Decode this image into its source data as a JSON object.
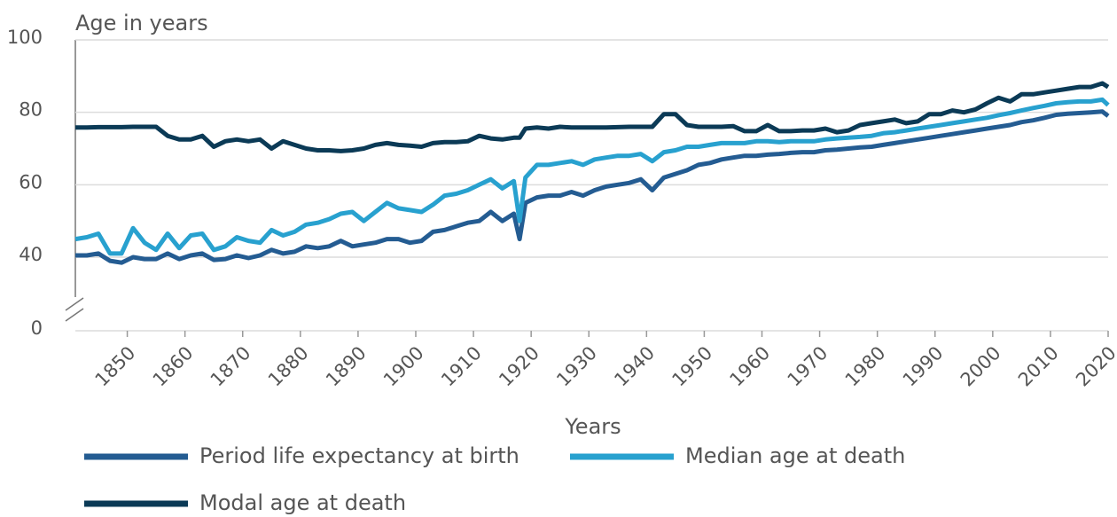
{
  "chart_data": {
    "type": "line",
    "y_axis_label": "Age in years",
    "x_axis_label": "Years",
    "xlim": [
      1841,
      2020
    ],
    "xticks": [
      1850,
      1860,
      1870,
      1880,
      1890,
      1900,
      1910,
      1920,
      1930,
      1940,
      1950,
      1960,
      1970,
      1980,
      1990,
      2000,
      2010,
      2020
    ],
    "ylim": [
      0,
      100
    ],
    "ybreak": [
      0,
      40
    ],
    "yticks": [
      0,
      40,
      60,
      80,
      100
    ],
    "grid": true,
    "legend": "bottom",
    "x": [
      1841,
      1843,
      1845,
      1847,
      1849,
      1851,
      1853,
      1855,
      1857,
      1859,
      1861,
      1863,
      1865,
      1867,
      1869,
      1871,
      1873,
      1875,
      1877,
      1879,
      1881,
      1883,
      1885,
      1887,
      1889,
      1891,
      1893,
      1895,
      1897,
      1899,
      1901,
      1903,
      1905,
      1907,
      1909,
      1911,
      1913,
      1915,
      1917,
      1918,
      1919,
      1921,
      1923,
      1925,
      1927,
      1929,
      1931,
      1933,
      1935,
      1937,
      1939,
      1941,
      1943,
      1945,
      1947,
      1949,
      1951,
      1953,
      1955,
      1957,
      1959,
      1961,
      1963,
      1965,
      1967,
      1969,
      1971,
      1973,
      1975,
      1977,
      1979,
      1981,
      1983,
      1985,
      1987,
      1989,
      1991,
      1993,
      1995,
      1997,
      1999,
      2001,
      2003,
      2005,
      2007,
      2009,
      2011,
      2013,
      2015,
      2017,
      2019,
      2020
    ],
    "series": [
      {
        "name": "Period life expectancy at birth",
        "color": "#245c92",
        "values": [
          40.5,
          40.5,
          41,
          38,
          37,
          40,
          39,
          39,
          41,
          39,
          40.5,
          41,
          38.5,
          39,
          40.5,
          39.5,
          40.5,
          42,
          41,
          41.5,
          43,
          42.5,
          43,
          44.5,
          43,
          43.5,
          44,
          45,
          45,
          44,
          44.5,
          47,
          47.5,
          48.5,
          49.5,
          50,
          52.5,
          50,
          52,
          45,
          55,
          56.5,
          57,
          57,
          58,
          57,
          58.5,
          59.5,
          60,
          60.5,
          61.5,
          58.5,
          62,
          63,
          64,
          65.5,
          66,
          67,
          67.5,
          68,
          68,
          68.3,
          68.5,
          68.8,
          69,
          69,
          69.5,
          69.7,
          70,
          70.3,
          70.5,
          71,
          71.5,
          72,
          72.5,
          73,
          73.5,
          74,
          74.5,
          75,
          75.5,
          76,
          76.5,
          77.3,
          77.8,
          78.5,
          79.3,
          79.6,
          79.8,
          80,
          80.2,
          79
        ]
      },
      {
        "name": "Median age at death",
        "color": "#28a1cf",
        "values": [
          45,
          45.5,
          46.5,
          41,
          41,
          48,
          44,
          42,
          46.5,
          42.5,
          46,
          46.5,
          42,
          43,
          45.5,
          44.5,
          44,
          47.5,
          46,
          47,
          49,
          49.5,
          50.5,
          52,
          52.5,
          50,
          52.5,
          55,
          53.5,
          53,
          52.5,
          54.5,
          57,
          57.5,
          58.5,
          60,
          61.5,
          59,
          61,
          50,
          62,
          65.5,
          65.5,
          66,
          66.5,
          65.5,
          67,
          67.5,
          68,
          68,
          68.5,
          66.5,
          69,
          69.5,
          70.5,
          70.5,
          71,
          71.5,
          71.5,
          71.5,
          72,
          72,
          71.8,
          72,
          72,
          72,
          72.5,
          72.8,
          73,
          73.2,
          73.5,
          74.2,
          74.5,
          75,
          75.5,
          76,
          76.5,
          77,
          77.5,
          78,
          78.5,
          79.2,
          79.8,
          80.5,
          81.2,
          81.8,
          82.5,
          82.8,
          83,
          83,
          83.5,
          82
        ]
      },
      {
        "name": "Modal age at death",
        "color": "#0b3a56",
        "values": [
          75.8,
          75.8,
          75.9,
          75.9,
          75.9,
          76,
          76,
          76,
          73.5,
          72.5,
          72.5,
          73.5,
          70.5,
          72,
          72.5,
          72,
          72.5,
          70,
          72,
          71,
          70,
          69.5,
          69.5,
          69.3,
          69.5,
          70,
          71,
          71.5,
          71,
          70.8,
          70.5,
          71.5,
          71.8,
          71.8,
          72,
          73.5,
          72.8,
          72.5,
          73,
          73,
          75.5,
          75.8,
          75.5,
          76,
          75.8,
          75.8,
          75.8,
          75.8,
          75.9,
          76,
          76,
          76,
          79.5,
          79.5,
          76.5,
          76,
          76,
          76,
          76.2,
          74.8,
          74.8,
          76.5,
          74.8,
          74.8,
          75,
          75,
          75.5,
          74.5,
          75,
          76.5,
          77,
          77.5,
          78,
          77,
          77.5,
          79.5,
          79.5,
          80.5,
          80,
          80.8,
          82.5,
          84,
          83,
          85,
          85,
          85.5,
          86,
          86.5,
          87,
          87,
          88,
          87
        ]
      }
    ]
  }
}
